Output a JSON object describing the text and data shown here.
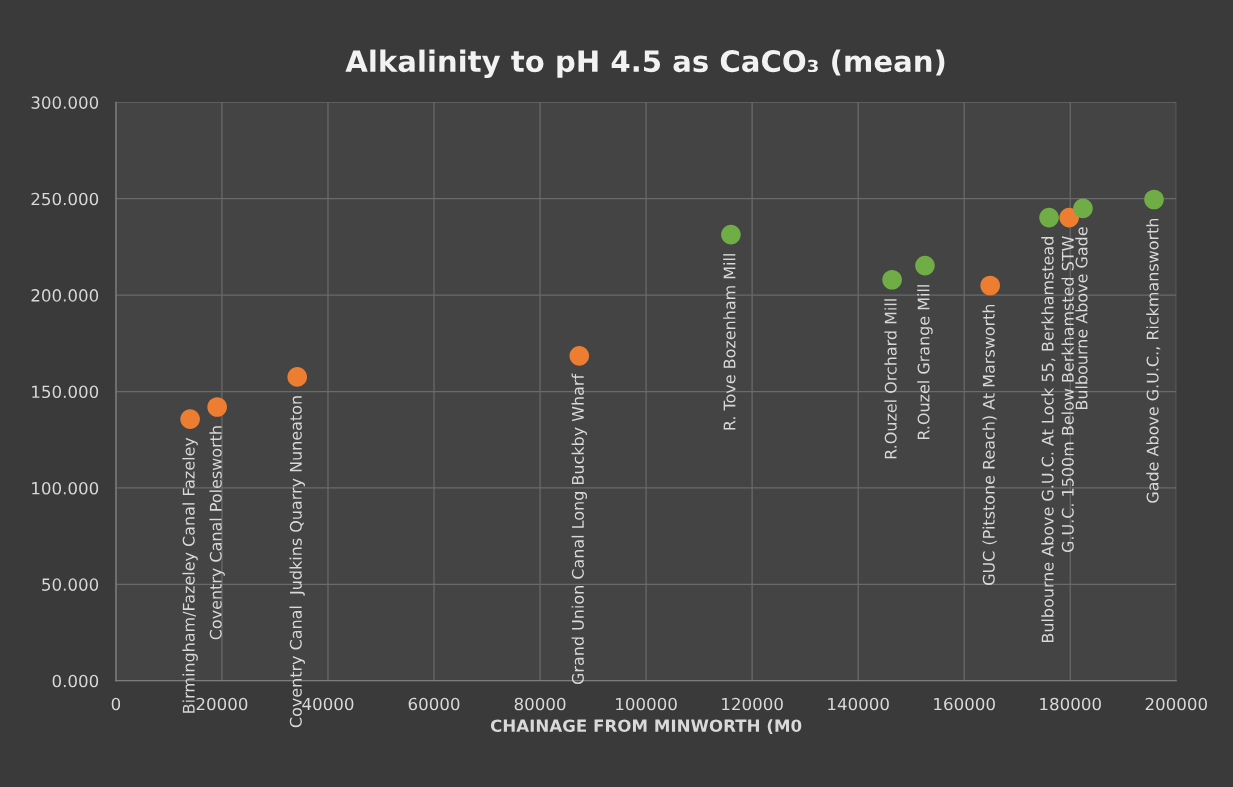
{
  "chart_data": {
    "type": "scatter",
    "title": "Alkalinity to pH 4.5 as CaCO₃ (mean)",
    "xlabel": "CHAINAGE FROM MINWORTH (M0",
    "xlim": [
      0,
      200000
    ],
    "xticks": [
      0,
      20000,
      40000,
      60000,
      80000,
      100000,
      120000,
      140000,
      160000,
      180000,
      200000
    ],
    "ylim": [
      0,
      300
    ],
    "yticks": [
      {
        "value": 0,
        "label": "0.000"
      },
      {
        "value": 50,
        "label": "50.000"
      },
      {
        "value": 100,
        "label": "100.000"
      },
      {
        "value": 150,
        "label": "150.000"
      },
      {
        "value": 200,
        "label": "200.000"
      },
      {
        "value": 250,
        "label": "250.000"
      },
      {
        "value": 300,
        "label": "300.000"
      }
    ],
    "grid": true,
    "marker": "circle",
    "series": [
      {
        "color": "#ed7d31",
        "x": [
          14000,
          19100,
          34200,
          87400,
          164900,
          179800
        ],
        "values": [
          135.7,
          142,
          157.6,
          168.5,
          205,
          240.2
        ]
      },
      {
        "color": "#70ad47",
        "x": [
          116000,
          146400,
          152600,
          176000,
          182400,
          195800
        ],
        "values": [
          231.4,
          208,
          215.3,
          240.2,
          245,
          249.6
        ]
      }
    ],
    "annotations": [
      {
        "text": "Birmingham/Fazeley Canal Fazeley",
        "x": 14000,
        "y": 135.7
      },
      {
        "text": "Coventry Canal Polesworth",
        "x": 19100,
        "y": 142
      },
      {
        "text": "Coventry Canal  Judkins Quarry Nuneaton",
        "x": 34200,
        "y": 157.6
      },
      {
        "text": "Grand Union Canal Long Buckby Wharf",
        "x": 87400,
        "y": 168.5
      },
      {
        "text": "R. Tove Bozenham Mill",
        "x": 116000,
        "y": 231.4
      },
      {
        "text": "R.Ouzel Orchard Mill",
        "x": 146400,
        "y": 208
      },
      {
        "text": "R.Ouzel Grange Mill",
        "x": 152600,
        "y": 215.3
      },
      {
        "text": "GUC (Pitstone Reach) At Marsworth",
        "x": 164900,
        "y": 205
      },
      {
        "text": "Bulbourne Above G.U.C. At Lock 55, Berkhamstead",
        "x": 176000,
        "y": 240.2
      },
      {
        "text": "G.U.C. 1500m Below Berkhamsted STW",
        "x": 179800,
        "y": 240.2
      },
      {
        "text": "Bulbourne Above Gade",
        "x": 182400,
        "y": 245
      },
      {
        "text": "Gade Above G.U.C., Rickmansworth",
        "x": 195800,
        "y": 249.6
      }
    ]
  }
}
